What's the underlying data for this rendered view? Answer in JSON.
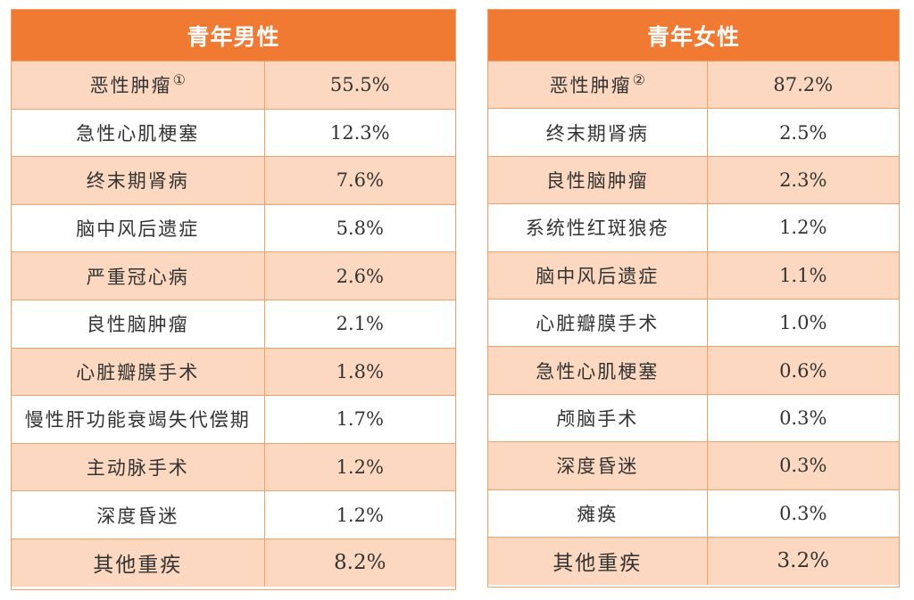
{
  "chart_data": [
    {
      "type": "table",
      "title": "青年男性",
      "rows": [
        {
          "label": "恶性肿瘤",
          "note": "①",
          "value": "55.5%"
        },
        {
          "label": "急性心肌梗塞",
          "note": "",
          "value": "12.3%"
        },
        {
          "label": "终末期肾病",
          "note": "",
          "value": "7.6%"
        },
        {
          "label": "脑中风后遗症",
          "note": "",
          "value": "5.8%"
        },
        {
          "label": "严重冠心病",
          "note": "",
          "value": "2.6%"
        },
        {
          "label": "良性脑肿瘤",
          "note": "",
          "value": "2.1%"
        },
        {
          "label": "心脏瓣膜手术",
          "note": "",
          "value": "1.8%"
        },
        {
          "label": "慢性肝功能衰竭失代偿期",
          "note": "",
          "value": "1.7%"
        },
        {
          "label": "主动脉手术",
          "note": "",
          "value": "1.2%"
        },
        {
          "label": "深度昏迷",
          "note": "",
          "value": "1.2%"
        },
        {
          "label": "其他重疾",
          "note": "",
          "value": "8.2%"
        }
      ]
    },
    {
      "type": "table",
      "title": "青年女性",
      "rows": [
        {
          "label": "恶性肿瘤",
          "note": "②",
          "value": "87.2%"
        },
        {
          "label": "终末期肾病",
          "note": "",
          "value": "2.5%"
        },
        {
          "label": "良性脑肿瘤",
          "note": "",
          "value": "2.3%"
        },
        {
          "label": "系统性红斑狼疮",
          "note": "",
          "value": "1.2%"
        },
        {
          "label": "脑中风后遗症",
          "note": "",
          "value": "1.1%"
        },
        {
          "label": "心脏瓣膜手术",
          "note": "",
          "value": "1.0%"
        },
        {
          "label": "急性心肌梗塞",
          "note": "",
          "value": "0.6%"
        },
        {
          "label": "颅脑手术",
          "note": "",
          "value": "0.3%"
        },
        {
          "label": "深度昏迷",
          "note": "",
          "value": "0.3%"
        },
        {
          "label": "瘫痪",
          "note": "",
          "value": "0.3%"
        },
        {
          "label": "其他重疾",
          "note": "",
          "value": "3.2%"
        }
      ]
    }
  ],
  "colors": {
    "header_bg": "#f07a32",
    "row_shade": "#fcd8c1",
    "border": "#f1a06a",
    "text": "#333333"
  }
}
